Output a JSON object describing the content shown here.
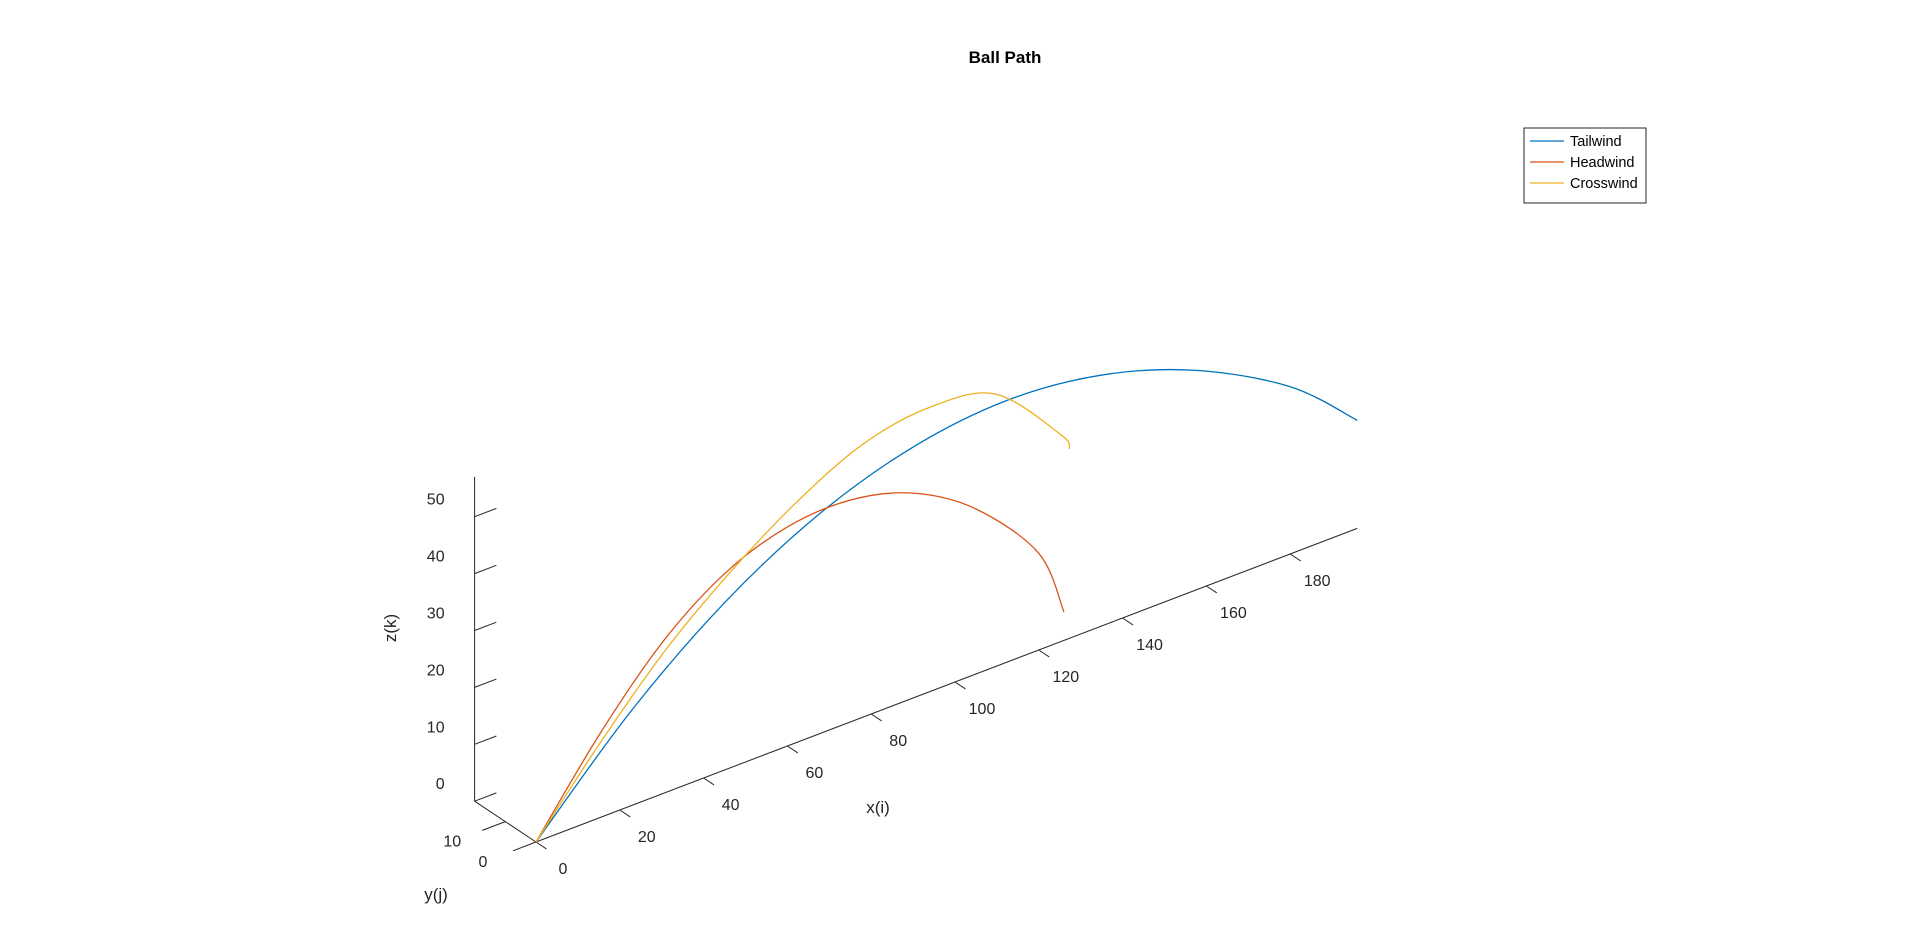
{
  "chart_data": {
    "type": "line",
    "title": "Ball Path",
    "xlabel": "x(i)",
    "ylabel": "y(j)",
    "zlabel": "z(k)",
    "x_ticks": [
      0,
      20,
      40,
      60,
      80,
      100,
      120,
      140,
      160,
      180
    ],
    "y_ticks": [
      0,
      10
    ],
    "z_ticks": [
      0,
      10,
      20,
      30,
      40,
      50
    ],
    "xlim": [
      0,
      196
    ],
    "ylim": [
      0,
      20
    ],
    "zlim": [
      0,
      57
    ],
    "grid": false,
    "legend_position": "top-right",
    "series": [
      {
        "name": "Tailwind",
        "color": "#0072BD",
        "x": [
          0,
          22.5,
          45,
          67.5,
          90,
          112.5,
          135,
          157.5,
          180,
          196
        ],
        "y": [
          0,
          0,
          0,
          0,
          0,
          0,
          0,
          0,
          0,
          0
        ],
        "z": [
          0,
          16.5,
          29.4,
          38.6,
          44.1,
          46,
          44.1,
          38.6,
          29.4,
          19
        ]
      },
      {
        "name": "Headwind",
        "color": "#D95319",
        "x": [
          0,
          15,
          30,
          45,
          60,
          75,
          90,
          105,
          120,
          126
        ],
        "y": [
          0,
          0,
          0,
          0,
          0,
          0,
          0,
          0,
          0,
          0
        ],
        "z": [
          0,
          14.5,
          26.5,
          34.5,
          38.5,
          39,
          36,
          29,
          17,
          5
        ]
      },
      {
        "name": "Crosswind",
        "color": "#EDB120",
        "x": [
          0,
          17.5,
          35,
          52.5,
          70,
          87.5,
          105,
          122.5,
          140,
          142
        ],
        "y": [
          0,
          2.5,
          5,
          7.5,
          10,
          12.5,
          15,
          17.5,
          20,
          20
        ],
        "z": [
          0,
          12,
          22.5,
          30.5,
          36.8,
          41,
          41.5,
          38,
          25,
          22
        ]
      }
    ]
  }
}
